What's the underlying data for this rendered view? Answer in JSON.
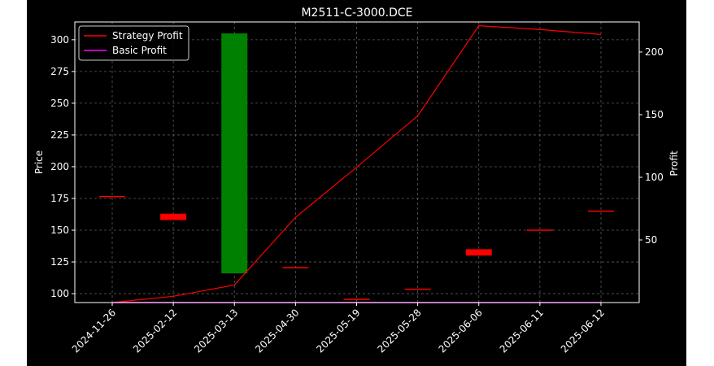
{
  "figure": {
    "background": "#ffffff",
    "chart_background": "#000000",
    "text_color": "#ffffff",
    "grid_color": "#808080"
  },
  "chart_data": {
    "type": "candlestick",
    "title": "M2511-C-3000.DCE",
    "ylabel": "Price",
    "y2label": "Profit",
    "ylim": [
      93,
      314
    ],
    "y2lim": [
      0,
      224
    ],
    "yticks": [
      100,
      125,
      150,
      175,
      200,
      225,
      250,
      275,
      300
    ],
    "y2ticks": [
      50,
      100,
      150,
      200
    ],
    "grid": true,
    "legend_position": "upper-left",
    "categories": [
      "2024-11-26",
      "2025-02-12",
      "2025-03-13",
      "2025-04-30",
      "2025-05-19",
      "2025-05-28",
      "2025-06-06",
      "2025-06-11",
      "2025-06-12"
    ],
    "candles": [
      {
        "open": 176.5,
        "close": 176.5,
        "color": "#ff0000"
      },
      {
        "open": 163,
        "close": 158,
        "color": "#ff0000"
      },
      {
        "open": 116,
        "close": 305,
        "color": "#008000"
      },
      {
        "open": 120.5,
        "close": 120.5,
        "color": "#ff0000"
      },
      {
        "open": 95.5,
        "close": 95.5,
        "color": "#ff0000"
      },
      {
        "open": 103.5,
        "close": 103.5,
        "color": "#ff0000"
      },
      {
        "open": 135,
        "close": 130,
        "color": "#ff0000"
      },
      {
        "open": 150,
        "close": 150,
        "color": "#ff0000"
      },
      {
        "open": 165,
        "close": 165,
        "color": "#ff0000"
      }
    ],
    "series": [
      {
        "name": "Strategy Profit",
        "axis": "right",
        "color": "#ff0000",
        "values": [
          0,
          5,
          14,
          68,
          108,
          149,
          221,
          218,
          214
        ]
      },
      {
        "name": "Basic Profit",
        "axis": "right",
        "color": "#ff00ff",
        "values": [
          0,
          0,
          0,
          0,
          0,
          0,
          0,
          0,
          0
        ]
      }
    ]
  }
}
